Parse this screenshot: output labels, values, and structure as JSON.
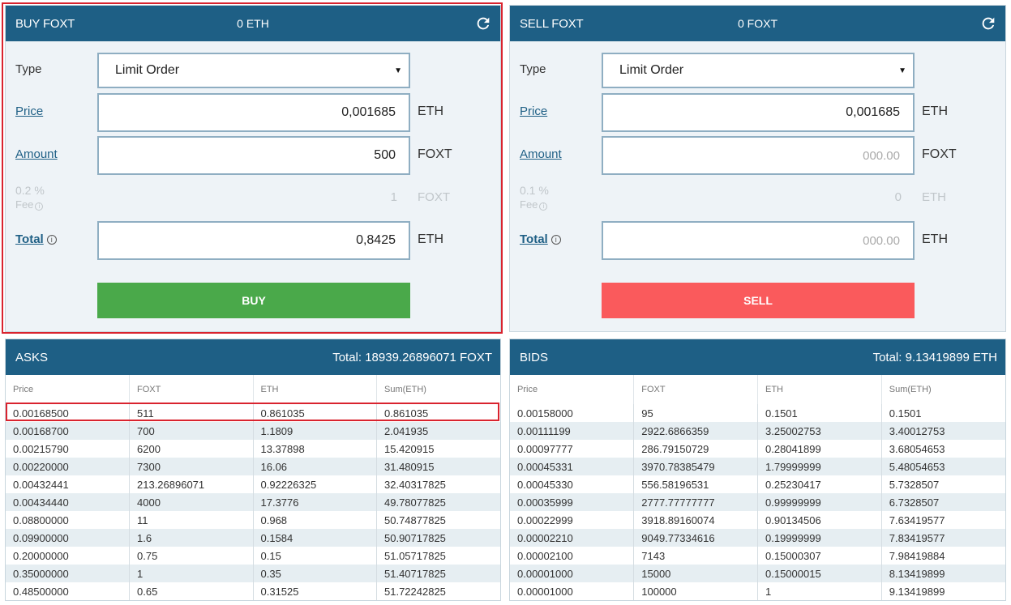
{
  "buy": {
    "title": "BUY FOXT",
    "balance": "0 ETH",
    "type_label": "Type",
    "type_value": "Limit Order",
    "price_label": "Price",
    "price_value": "0,001685",
    "price_unit": "ETH",
    "amount_label": "Amount",
    "amount_value": "500",
    "amount_unit": "FOXT",
    "fee_pct": "0.2 %",
    "fee_label": "Fee",
    "fee_value": "1",
    "fee_unit": "FOXT",
    "total_label": "Total",
    "total_value": "0,8425",
    "total_unit": "ETH",
    "button_label": "BUY"
  },
  "sell": {
    "title": "SELL FOXT",
    "balance": "0 FOXT",
    "type_label": "Type",
    "type_value": "Limit Order",
    "price_label": "Price",
    "price_value": "0,001685",
    "price_unit": "ETH",
    "amount_label": "Amount",
    "amount_placeholder": "000.00",
    "amount_unit": "FOXT",
    "fee_pct": "0.1 %",
    "fee_label": "Fee",
    "fee_value": "0",
    "fee_unit": "ETH",
    "total_label": "Total",
    "total_placeholder": "000.00",
    "total_unit": "ETH",
    "button_label": "SELL"
  },
  "asks": {
    "title": "ASKS",
    "total": "Total: 18939.26896071 FOXT",
    "columns": [
      "Price",
      "FOXT",
      "ETH",
      "Sum(ETH)"
    ],
    "rows": [
      [
        "0.00168500",
        "511",
        "0.861035",
        "0.861035"
      ],
      [
        "0.00168700",
        "700",
        "1.1809",
        "2.041935"
      ],
      [
        "0.00215790",
        "6200",
        "13.37898",
        "15.420915"
      ],
      [
        "0.00220000",
        "7300",
        "16.06",
        "31.480915"
      ],
      [
        "0.00432441",
        "213.26896071",
        "0.92226325",
        "32.40317825"
      ],
      [
        "0.00434440",
        "4000",
        "17.3776",
        "49.78077825"
      ],
      [
        "0.08800000",
        "11",
        "0.968",
        "50.74877825"
      ],
      [
        "0.09900000",
        "1.6",
        "0.1584",
        "50.90717825"
      ],
      [
        "0.20000000",
        "0.75",
        "0.15",
        "51.05717825"
      ],
      [
        "0.35000000",
        "1",
        "0.35",
        "51.40717825"
      ],
      [
        "0.48500000",
        "0.65",
        "0.31525",
        "51.72242825"
      ]
    ]
  },
  "bids": {
    "title": "BIDS",
    "total": "Total: 9.13419899 ETH",
    "columns": [
      "Price",
      "FOXT",
      "ETH",
      "Sum(ETH)"
    ],
    "rows": [
      [
        "0.00158000",
        "95",
        "0.1501",
        "0.1501"
      ],
      [
        "0.00111199",
        "2922.6866359",
        "3.25002753",
        "3.40012753"
      ],
      [
        "0.00097777",
        "286.79150729",
        "0.28041899",
        "3.68054653"
      ],
      [
        "0.00045331",
        "3970.78385479",
        "1.79999999",
        "5.48054653"
      ],
      [
        "0.00045330",
        "556.58196531",
        "0.25230417",
        "5.7328507"
      ],
      [
        "0.00035999",
        "2777.77777777",
        "0.99999999",
        "6.7328507"
      ],
      [
        "0.00022999",
        "3918.89160074",
        "0.90134506",
        "7.63419577"
      ],
      [
        "0.00002210",
        "9049.77334616",
        "0.19999999",
        "7.83419577"
      ],
      [
        "0.00002100",
        "7143",
        "0.15000307",
        "7.98419884"
      ],
      [
        "0.00001000",
        "15000",
        "0.15000015",
        "8.13419899"
      ],
      [
        "0.00001000",
        "100000",
        "1",
        "9.13419899"
      ]
    ]
  },
  "colors": {
    "header_bg": "#1e5f85",
    "buy_button": "#4aa94a",
    "sell_button": "#fa5a5c",
    "highlight": "#d9232e"
  },
  "icons": {
    "refresh": "refresh-icon",
    "info": "info-icon",
    "dropdown": "caret-down-icon"
  }
}
